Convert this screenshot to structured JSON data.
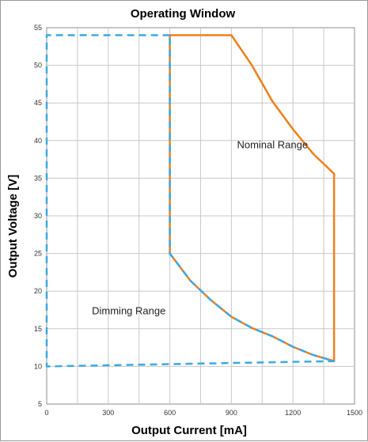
{
  "chart_data": {
    "type": "line",
    "title": "Operating Window",
    "xlabel": "Output Current [mA]",
    "ylabel": "Output Voltage [V]",
    "xlim": [
      0,
      1500
    ],
    "ylim": [
      5,
      55
    ],
    "xticks": [
      0,
      300,
      600,
      900,
      1200,
      1500
    ],
    "yticks": [
      5,
      10,
      15,
      20,
      25,
      30,
      35,
      40,
      45,
      50,
      55
    ],
    "xgrid_step": 150,
    "ygrid_step": 5,
    "grid": true,
    "series": [
      {
        "color": "#ef7f1a",
        "dash": "solid",
        "points": [
          [
            600,
            54
          ],
          [
            900,
            54
          ],
          [
            1000,
            50
          ],
          [
            1100,
            45.2
          ],
          [
            1200,
            41.5
          ],
          [
            1300,
            38.2
          ],
          [
            1400,
            35.6
          ],
          [
            1400,
            10.7
          ],
          [
            1300,
            11.5
          ],
          [
            1200,
            12.6
          ],
          [
            1100,
            14
          ],
          [
            1000,
            15.1
          ],
          [
            900,
            16.6
          ],
          [
            800,
            18.8
          ],
          [
            700,
            21.4
          ],
          [
            600,
            25
          ],
          [
            600,
            54
          ]
        ]
      },
      {
        "color": "#3ca9e2",
        "dash": "dashed",
        "points": [
          [
            600,
            54
          ],
          [
            0,
            54
          ],
          [
            0,
            10
          ],
          [
            1400,
            10.7
          ],
          [
            1300,
            11.5
          ],
          [
            1200,
            12.6
          ],
          [
            1100,
            14
          ],
          [
            1000,
            15.1
          ],
          [
            900,
            16.6
          ],
          [
            800,
            18.8
          ],
          [
            700,
            21.4
          ],
          [
            600,
            25
          ],
          [
            600,
            54
          ]
        ]
      }
    ],
    "annotations": [
      {
        "text": "Nominal Range",
        "x": 1100,
        "y": 39
      },
      {
        "text": "Dimming Range",
        "x": 400,
        "y": 16.9
      }
    ]
  }
}
